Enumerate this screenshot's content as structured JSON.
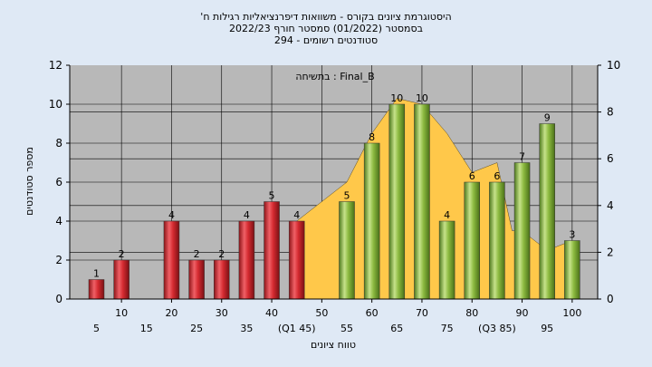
{
  "chart_data": {
    "type": "bar",
    "title_lines": [
      "'היסטוגרמת ציונים בקורס - משוואות דיפרנציאליות רגילות ח",
      "בסמסטר  (01/2022)  סמסטר חורף 2022/23",
      "סטודנטים רשומים - 294"
    ],
    "annotation": "בתשיחה : Final_B",
    "ylabel": "מספר סטודנטים",
    "xlabel": "טווח ציונים",
    "ylim_left": [
      0,
      12
    ],
    "yticks_left": [
      "0",
      "2",
      "4",
      "6",
      "8",
      "10",
      "12"
    ],
    "ylim_right": [
      0,
      10
    ],
    "yticks_right": [
      "0",
      "2",
      "4",
      "6",
      "8",
      "10"
    ],
    "x_ticks_upper": [
      "10",
      "20",
      "30",
      "40",
      "50",
      "60",
      "70",
      "80",
      "90",
      "100"
    ],
    "x_ticks_lower": [
      "5",
      "15",
      "25",
      "35",
      "(Q1 45)",
      "55",
      "65",
      "75",
      "(Q3 85)",
      "95"
    ],
    "bars": [
      {
        "x": 5,
        "value": 1,
        "label": "1",
        "group": "fail"
      },
      {
        "x": 10,
        "value": 2,
        "label": "2",
        "group": "fail"
      },
      {
        "x": 20,
        "value": 4,
        "label": "4",
        "group": "fail"
      },
      {
        "x": 25,
        "value": 2,
        "label": "2",
        "group": "fail"
      },
      {
        "x": 30,
        "value": 2,
        "label": "2",
        "group": "fail"
      },
      {
        "x": 35,
        "value": 4,
        "label": "4",
        "group": "fail"
      },
      {
        "x": 40,
        "value": 5,
        "label": "5",
        "group": "fail"
      },
      {
        "x": 45,
        "value": 4,
        "label": "4",
        "group": "fail"
      },
      {
        "x": 55,
        "value": 5,
        "label": "5",
        "group": "pass"
      },
      {
        "x": 60,
        "value": 8,
        "label": "8",
        "group": "pass"
      },
      {
        "x": 65,
        "value": 10,
        "label": "10",
        "group": "pass"
      },
      {
        "x": 70,
        "value": 10,
        "label": "10",
        "group": "pass"
      },
      {
        "x": 75,
        "value": 4,
        "label": "4",
        "group": "pass"
      },
      {
        "x": 80,
        "value": 6,
        "label": "6",
        "group": "pass"
      },
      {
        "x": 85,
        "value": 6,
        "label": "6",
        "group": "pass"
      },
      {
        "x": 90,
        "value": 7,
        "label": "7",
        "group": "pass"
      },
      {
        "x": 95,
        "value": 9,
        "label": "9",
        "group": "pass"
      },
      {
        "x": 100,
        "value": 3,
        "label": "3",
        "group": "pass"
      }
    ],
    "area_series": {
      "points": [
        [
          45,
          4
        ],
        [
          50,
          5
        ],
        [
          55,
          6
        ],
        [
          60,
          8.5
        ],
        [
          65,
          10.3
        ],
        [
          70,
          10
        ],
        [
          75,
          8.5
        ],
        [
          80,
          6.5
        ],
        [
          85,
          7
        ],
        [
          88,
          3.5
        ],
        [
          90,
          3.5
        ],
        [
          95,
          2.5
        ],
        [
          100,
          3
        ]
      ]
    },
    "colors": {
      "fail": "#d42a30",
      "pass": "#8cba40",
      "area": "#ffc84a",
      "plot_bg": "#b8b8b8",
      "page_bg": "#dfe9f5"
    },
    "grid": true
  }
}
